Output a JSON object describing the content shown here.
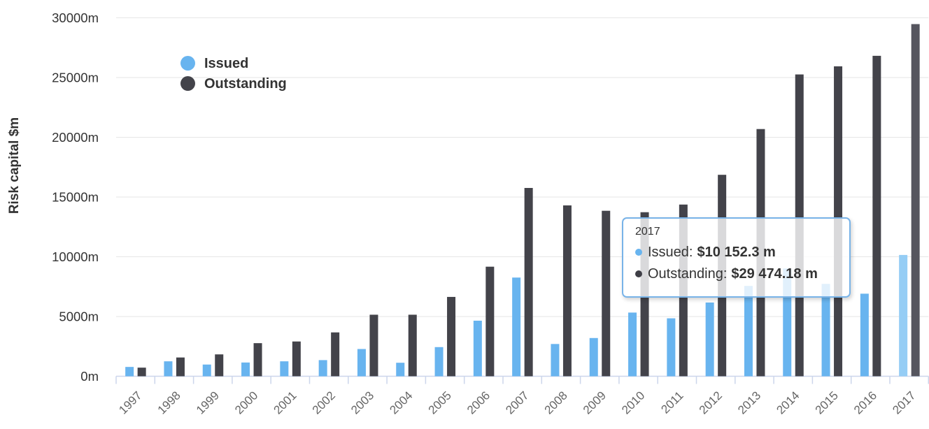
{
  "chart_data": {
    "type": "bar",
    "title": "",
    "xlabel": "",
    "ylabel": "Risk capital $m",
    "ylim": [
      0,
      30000
    ],
    "grid": true,
    "legend_position": "top-left",
    "highlighted_category": "2017",
    "y_ticks": [
      {
        "value": 0,
        "label": "0m"
      },
      {
        "value": 5000,
        "label": "5000m"
      },
      {
        "value": 10000,
        "label": "10000m"
      },
      {
        "value": 15000,
        "label": "15000m"
      },
      {
        "value": 20000,
        "label": "20000m"
      },
      {
        "value": 25000,
        "label": "25000m"
      },
      {
        "value": 30000,
        "label": "30000m"
      }
    ],
    "categories": [
      "1997",
      "1998",
      "1999",
      "2000",
      "2001",
      "2002",
      "2003",
      "2004",
      "2005",
      "2006",
      "2007",
      "2008",
      "2009",
      "2010",
      "2011",
      "2012",
      "2013",
      "2014",
      "2015",
      "2016",
      "2017"
    ],
    "series": [
      {
        "name": "Issued",
        "color": "#68b4ef",
        "hover_color": "#95cdf5",
        "values": [
          780,
          1250,
          980,
          1150,
          1250,
          1350,
          2280,
          1130,
          2440,
          4650,
          8260,
          2700,
          3200,
          5330,
          4850,
          6170,
          7560,
          9020,
          7730,
          6910,
          10152.3
        ]
      },
      {
        "name": "Outstanding",
        "color": "#43434a",
        "hover_color": "#55555e",
        "values": [
          720,
          1570,
          1830,
          2770,
          2910,
          3670,
          5150,
          5150,
          6640,
          9170,
          15760,
          14300,
          13850,
          13730,
          14370,
          16860,
          20690,
          25260,
          25940,
          26820,
          29474.18
        ]
      }
    ]
  },
  "legend": {
    "items": [
      {
        "label": "Issued",
        "color": "#68b4ef"
      },
      {
        "label": "Outstanding",
        "color": "#43434a"
      }
    ]
  },
  "tooltip": {
    "year": "2017",
    "rows": [
      {
        "label": "Issued:",
        "value": "$10 152.3 m",
        "color": "#68b4ef"
      },
      {
        "label": "Outstanding:",
        "value": "$29 474.18 m",
        "color": "#3e3e46"
      }
    ]
  },
  "colors": {
    "grid_line": "#e6e6e6",
    "axis_line": "#ccd6eb",
    "y_tick_label": "#333333",
    "x_tick_label": "#666666",
    "tooltip_border": "#78b3e8"
  }
}
